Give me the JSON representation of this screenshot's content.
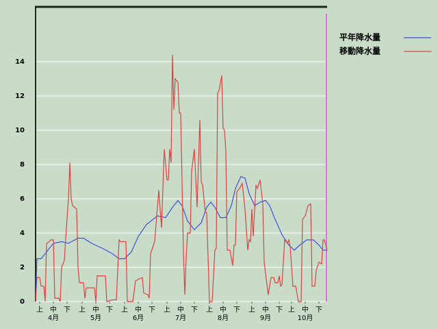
{
  "chart_data": {
    "type": "line",
    "background": "#c8dcc8",
    "grid": true,
    "legend_position": "right",
    "xlim": [
      0,
      213
    ],
    "ylim": [
      0,
      17.2
    ],
    "yticks": [
      0,
      2,
      4,
      6,
      8,
      10,
      12,
      14
    ],
    "xticks": [
      {
        "value": 3,
        "label": "上"
      },
      {
        "value": 13,
        "label": "中"
      },
      {
        "value": 23,
        "label": "下"
      },
      {
        "value": 34,
        "label": "上"
      },
      {
        "value": 44,
        "label": "中"
      },
      {
        "value": 54,
        "label": "下"
      },
      {
        "value": 65,
        "label": "上"
      },
      {
        "value": 75,
        "label": "中"
      },
      {
        "value": 85,
        "label": "下"
      },
      {
        "value": 96,
        "label": "上"
      },
      {
        "value": 106,
        "label": "中"
      },
      {
        "value": 116,
        "label": "下"
      },
      {
        "value": 127,
        "label": "上"
      },
      {
        "value": 137,
        "label": "中"
      },
      {
        "value": 147,
        "label": "下"
      },
      {
        "value": 158,
        "label": "上"
      },
      {
        "value": 168,
        "label": "中"
      },
      {
        "value": 178,
        "label": "下"
      },
      {
        "value": 187,
        "label": "上"
      },
      {
        "value": 197,
        "label": "中"
      },
      {
        "value": 207,
        "label": "下"
      }
    ],
    "month_labels": [
      {
        "value": 13,
        "label": "4月"
      },
      {
        "value": 44,
        "label": "5月"
      },
      {
        "value": 75,
        "label": "6月"
      },
      {
        "value": 106,
        "label": "7月"
      },
      {
        "value": 137,
        "label": "8月"
      },
      {
        "value": 168,
        "label": "9月"
      },
      {
        "value": 197,
        "label": "10月"
      }
    ],
    "marker_line": {
      "x": 212.5,
      "color": "#e070e0"
    },
    "series": [
      {
        "name": "平年降水量",
        "color": "#4050e0",
        "x": [
          0,
          1,
          4,
          9,
          13,
          19,
          24,
          31,
          35,
          41,
          49,
          56,
          61,
          65,
          70,
          75,
          81,
          89,
          95,
          100,
          104,
          107,
          111,
          116,
          121,
          125,
          128,
          131,
          135,
          139,
          143,
          146,
          150,
          153,
          156,
          160,
          164,
          168,
          171,
          175,
          180,
          185,
          189,
          193,
          198,
          203,
          207,
          210,
          213
        ],
        "values": [
          0,
          2.5,
          2.5,
          3,
          3.4,
          3.5,
          3.4,
          3.7,
          3.7,
          3.4,
          3.1,
          2.8,
          2.5,
          2.5,
          2.9,
          3.8,
          4.5,
          5.0,
          4.9,
          5.5,
          5.9,
          5.6,
          4.7,
          4.2,
          4.6,
          5.5,
          5.8,
          5.5,
          4.9,
          4.9,
          5.6,
          6.6,
          7.3,
          7.2,
          6.3,
          5.6,
          5.8,
          5.9,
          5.6,
          4.8,
          3.9,
          3.3,
          3.0,
          3.3,
          3.6,
          3.6,
          3.3,
          3.0,
          3.0
        ]
      },
      {
        "name": "移動降水量",
        "color": "#e04040",
        "x": [
          0,
          1,
          3,
          4,
          6,
          7,
          8,
          10,
          11,
          13,
          14,
          17,
          18,
          19,
          21,
          22,
          24,
          25,
          26,
          27,
          30,
          31,
          32,
          35,
          36,
          37,
          43,
          44,
          45,
          51,
          52,
          56,
          59,
          61,
          62,
          66,
          67,
          71,
          73,
          75,
          78,
          79,
          82,
          83,
          84,
          87,
          89,
          90,
          92,
          94,
          96,
          97,
          98,
          99,
          100,
          101,
          102,
          104,
          105,
          106,
          108,
          109,
          110,
          111,
          113,
          114,
          116,
          118,
          120,
          121,
          122,
          124,
          125,
          127,
          129,
          131,
          132,
          133,
          134,
          136,
          137,
          138,
          139,
          140,
          142,
          144,
          145,
          146,
          147,
          149,
          151,
          153,
          155,
          156,
          157,
          158,
          159,
          161,
          162,
          164,
          166,
          167,
          169,
          170,
          172,
          174,
          175,
          177,
          178,
          179,
          180,
          182,
          184,
          185,
          186,
          188,
          190,
          192,
          194,
          195,
          197,
          199,
          201,
          202,
          204,
          205,
          207,
          209,
          210,
          211,
          213
        ],
        "values": [
          0,
          1.4,
          1.4,
          0.9,
          0.9,
          0,
          3.4,
          3.5,
          3.6,
          3.6,
          0.2,
          0.2,
          0,
          2.0,
          2.4,
          3.7,
          6,
          8.1,
          6.0,
          5.6,
          5.4,
          2,
          1.1,
          1.1,
          0.2,
          0.8,
          0.8,
          0,
          1.5,
          1.5,
          0,
          0.1,
          0.1,
          3.6,
          3.5,
          3.5,
          0,
          0,
          1.2,
          1.3,
          1.4,
          0.5,
          0.4,
          0.2,
          2.8,
          3.5,
          5.5,
          6.5,
          4.3,
          8.9,
          7.1,
          7.1,
          8.9,
          8.1,
          14.4,
          11.2,
          13,
          12.8,
          11,
          11,
          3,
          0.4,
          2.5,
          4,
          4,
          7.6,
          8.9,
          5.5,
          10.6,
          7,
          6.8,
          5.2,
          5.2,
          0,
          0,
          3,
          3.1,
          12.2,
          12.3,
          13.2,
          10.1,
          10,
          8.8,
          3,
          3,
          2.1,
          3.3,
          3.3,
          6.4,
          6.6,
          6.9,
          5.4,
          3,
          3.6,
          3.5,
          5.4,
          3.8,
          6.8,
          6.6,
          7.1,
          5.7,
          2.3,
          1,
          0.4,
          1.4,
          1.4,
          1.1,
          1.1,
          1.5,
          0.9,
          1,
          3.6,
          3.4,
          3.6,
          3.2,
          0.9,
          0.9,
          0,
          0,
          4.8,
          5,
          5.6,
          5.7,
          0.9,
          0.9,
          1.8,
          2.3,
          2.2,
          3.6,
          3.6,
          3
        ]
      }
    ]
  }
}
